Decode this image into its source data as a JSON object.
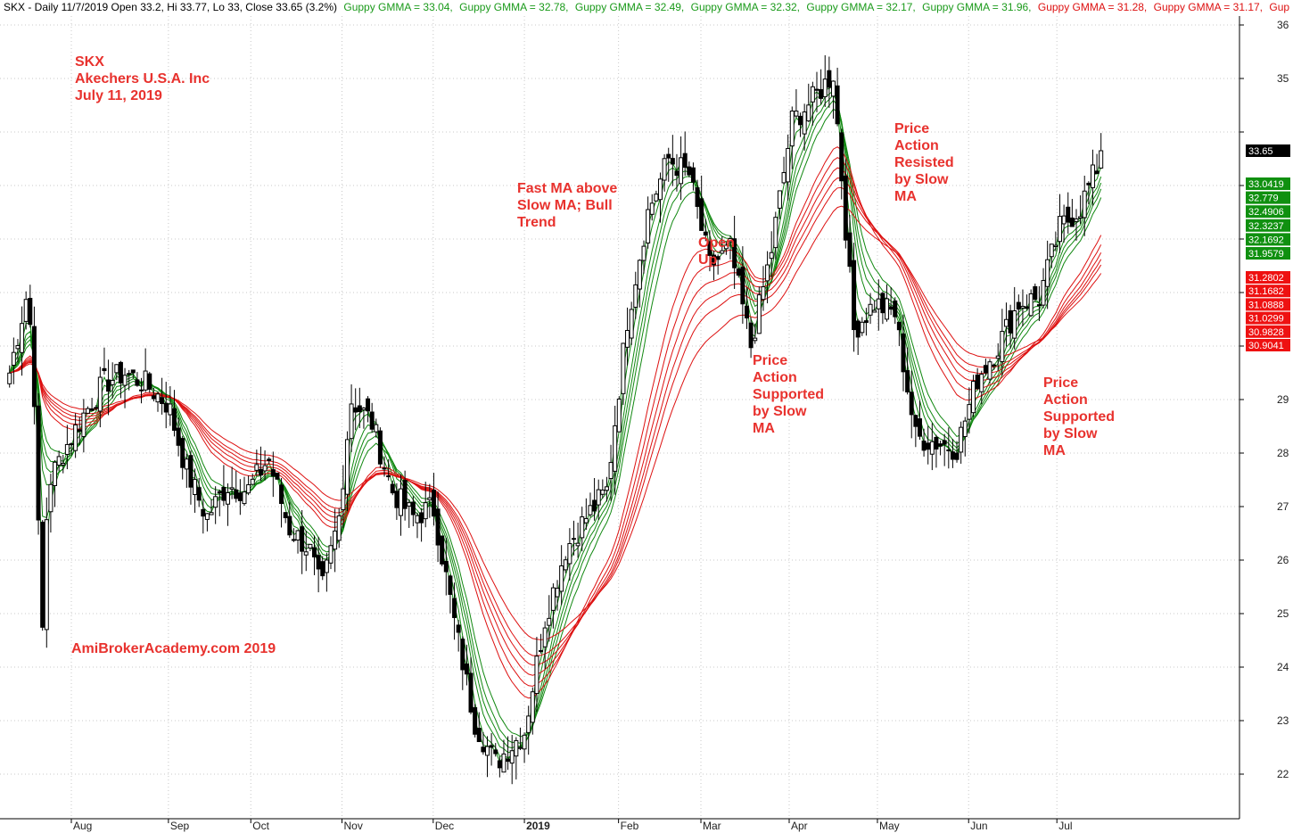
{
  "header": {
    "parts": [
      {
        "text": "SKX - Daily 11/7/2019 Open 33.2, Hi 33.77, Lo 33, Close 33.65 (3.2%)",
        "color": "#000000"
      },
      {
        "text": "Guppy GMMA = 33.04,",
        "color": "#1a9a1a"
      },
      {
        "text": "Guppy GMMA = 32.78,",
        "color": "#1a9a1a"
      },
      {
        "text": "Guppy GMMA = 32.49,",
        "color": "#1a9a1a"
      },
      {
        "text": "Guppy GMMA = 32.32,",
        "color": "#1a9a1a"
      },
      {
        "text": "Guppy GMMA = 32.17,",
        "color": "#1a9a1a"
      },
      {
        "text": "Guppy GMMA = 31.96,",
        "color": "#1a9a1a"
      },
      {
        "text": "Guppy GMMA = 31.28,",
        "color": "#dd1111"
      },
      {
        "text": "Guppy GMMA = 31.17,",
        "color": "#dd1111"
      },
      {
        "text": "Gup",
        "color": "#dd1111"
      }
    ]
  },
  "chart_data": {
    "type": "candlestick",
    "symbol": "SKX",
    "ylim": [
      21.5,
      36.5
    ],
    "xlim": [
      "2019-07-11",
      "2019-07-18"
    ],
    "y_ticks": [
      22,
      23,
      24,
      25,
      26,
      27,
      28,
      29,
      35,
      36
    ],
    "x_ticks": [
      {
        "label": "Aug",
        "date": "2019-08-01"
      },
      {
        "label": "Sep",
        "date": "2019-09-03"
      },
      {
        "label": "Oct",
        "date": "2019-10-01"
      },
      {
        "label": "Nov",
        "date": "2019-11-01"
      },
      {
        "label": "Dec",
        "date": "2019-12-02"
      },
      {
        "label": "2019",
        "date": "2020-01-02",
        "bold": true
      },
      {
        "label": "Feb",
        "date": "2020-02-03"
      },
      {
        "label": "Mar",
        "date": "2020-03-02"
      },
      {
        "label": "Apr",
        "date": "2020-04-01"
      },
      {
        "label": "May",
        "date": "2020-05-01"
      },
      {
        "label": "Jun",
        "date": "2020-06-01"
      },
      {
        "label": "Jul",
        "date": "2020-07-01"
      }
    ],
    "grid": true,
    "last_close": "33.65",
    "price_path": [
      [
        "2019-07-11",
        29.5
      ],
      [
        "2019-07-15",
        30.5
      ],
      [
        "2019-07-17",
        31.0
      ],
      [
        "2019-07-19",
        29.8
      ],
      [
        "2019-07-22",
        24.4
      ],
      [
        "2019-07-24",
        27.4
      ],
      [
        "2019-07-29",
        28.0
      ],
      [
        "2019-08-05",
        28.7
      ],
      [
        "2019-08-12",
        29.3
      ],
      [
        "2019-08-19",
        29.5
      ],
      [
        "2019-08-26",
        29.3
      ],
      [
        "2019-09-03",
        28.9
      ],
      [
        "2019-09-09",
        27.7
      ],
      [
        "2019-09-16",
        26.8
      ],
      [
        "2019-09-23",
        27.4
      ],
      [
        "2019-09-30",
        27.3
      ],
      [
        "2019-10-07",
        27.9
      ],
      [
        "2019-10-14",
        26.6
      ],
      [
        "2019-10-21",
        26.2
      ],
      [
        "2019-10-25",
        25.4
      ],
      [
        "2019-10-31",
        26.8
      ],
      [
        "2019-11-04",
        29.0
      ],
      [
        "2019-11-11",
        28.6
      ],
      [
        "2019-11-18",
        27.3
      ],
      [
        "2019-11-25",
        26.8
      ],
      [
        "2019-12-02",
        27.0
      ],
      [
        "2019-12-09",
        24.9
      ],
      [
        "2019-12-16",
        23.0
      ],
      [
        "2019-12-23",
        22.2
      ],
      [
        "2020-01-02",
        22.8
      ],
      [
        "2020-01-09",
        24.9
      ],
      [
        "2020-01-16",
        26.2
      ],
      [
        "2020-01-23",
        26.8
      ],
      [
        "2020-01-30",
        27.3
      ],
      [
        "2020-02-06",
        30.5
      ],
      [
        "2020-02-13",
        32.5
      ],
      [
        "2020-02-20",
        33.5
      ],
      [
        "2020-02-27",
        33.2
      ],
      [
        "2020-03-05",
        31.5
      ],
      [
        "2020-03-12",
        31.8
      ],
      [
        "2020-03-19",
        30.0
      ],
      [
        "2020-03-26",
        31.8
      ],
      [
        "2020-04-02",
        34.2
      ],
      [
        "2020-04-09",
        34.6
      ],
      [
        "2020-04-16",
        35.1
      ],
      [
        "2020-04-23",
        30.3
      ],
      [
        "2020-04-30",
        30.8
      ],
      [
        "2020-05-07",
        30.6
      ],
      [
        "2020-05-14",
        28.3
      ],
      [
        "2020-05-21",
        28.2
      ],
      [
        "2020-05-28",
        28.1
      ],
      [
        "2020-06-04",
        29.4
      ],
      [
        "2020-06-11",
        30.0
      ],
      [
        "2020-06-18",
        30.8
      ],
      [
        "2020-06-25",
        30.9
      ],
      [
        "2020-07-02",
        32.2
      ],
      [
        "2020-07-09",
        32.6
      ],
      [
        "2020-07-17",
        33.65
      ]
    ],
    "series": [
      {
        "group": "fast",
        "color": "#118811",
        "value_at_end": 33.0419,
        "label": "33.0419"
      },
      {
        "group": "fast",
        "color": "#118811",
        "value_at_end": 32.779,
        "label": "32.779"
      },
      {
        "group": "fast",
        "color": "#118811",
        "value_at_end": 32.4906,
        "label": "32.4906"
      },
      {
        "group": "fast",
        "color": "#118811",
        "value_at_end": 32.3237,
        "label": "32.3237"
      },
      {
        "group": "fast",
        "color": "#118811",
        "value_at_end": 32.1692,
        "label": "32.1692"
      },
      {
        "group": "fast",
        "color": "#118811",
        "value_at_end": 31.9579,
        "label": "31.9579"
      },
      {
        "group": "slow",
        "color": "#dd1111",
        "value_at_end": 31.2802,
        "label": "31.2802"
      },
      {
        "group": "slow",
        "color": "#dd1111",
        "value_at_end": 31.1682,
        "label": "31.1682"
      },
      {
        "group": "slow",
        "color": "#dd1111",
        "value_at_end": 31.0888,
        "label": "31.0888"
      },
      {
        "group": "slow",
        "color": "#dd1111",
        "value_at_end": 31.0299,
        "label": "31.0299"
      },
      {
        "group": "slow",
        "color": "#dd1111",
        "value_at_end": 30.9828,
        "label": "30.9828"
      },
      {
        "group": "slow",
        "color": "#dd1111",
        "value_at_end": 30.9041,
        "label": "30.9041"
      }
    ]
  },
  "annotations": [
    {
      "lines": [
        "SKX",
        "Akechers U.S.A. Inc",
        "July 11, 2019"
      ]
    },
    {
      "lines": [
        "Fast MA above",
        "Slow MA; Bull",
        "Trend"
      ]
    },
    {
      "lines": [
        "Open",
        "Up"
      ]
    },
    {
      "lines": [
        "Price",
        "Action",
        "Supported",
        "by Slow",
        "MA"
      ]
    },
    {
      "lines": [
        "Price",
        "Action",
        "Resisted",
        "by Slow",
        "MA"
      ]
    },
    {
      "lines": [
        "Price",
        "Action",
        "Supported",
        "by Slow",
        "MA"
      ]
    },
    {
      "lines": [
        "AmiBrokerAcademy.com  2019"
      ]
    }
  ],
  "colors": {
    "annotation": "#e8322e",
    "fast_ma": "#118811",
    "slow_ma": "#dd1111",
    "candle": "#000000",
    "grid": "#c8c8c8",
    "price_tag_bg": "#000000",
    "fast_tag_bg": "#109010",
    "slow_tag_bg": "#ee1111"
  }
}
